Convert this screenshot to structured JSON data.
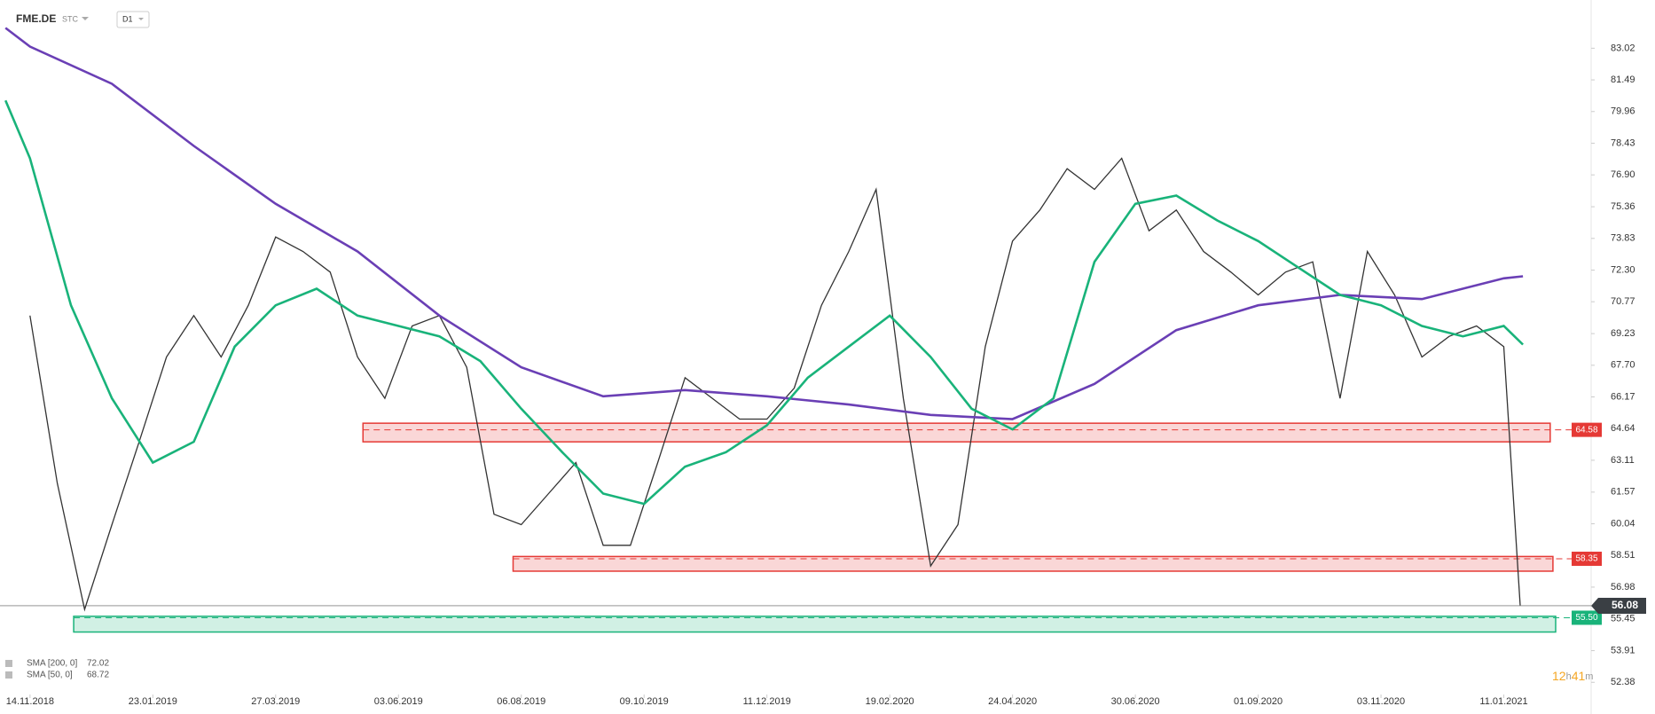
{
  "header": {
    "symbol": "FME.DE",
    "mode": "STC",
    "interval": "D1"
  },
  "chart_data": {
    "type": "line",
    "x": [
      0,
      10,
      20,
      30,
      40,
      50,
      60,
      70,
      80,
      90,
      100,
      110,
      120,
      130,
      140,
      150,
      160,
      170,
      180,
      190,
      200,
      210,
      220,
      230,
      240,
      250,
      260,
      270,
      280,
      290,
      300,
      310,
      320,
      330,
      340,
      350,
      360,
      370,
      380,
      390,
      400,
      410,
      420,
      430,
      440,
      450,
      460,
      470,
      480,
      490,
      500,
      510,
      520,
      530,
      540,
      546
    ],
    "xlim": [
      -11,
      572
    ],
    "xticks": [
      {
        "value": 0,
        "label": "14.11.2018"
      },
      {
        "value": 45,
        "label": "23.01.2019"
      },
      {
        "value": 90,
        "label": "27.03.2019"
      },
      {
        "value": 135,
        "label": "03.06.2019"
      },
      {
        "value": 180,
        "label": "06.08.2019"
      },
      {
        "value": 225,
        "label": "09.10.2019"
      },
      {
        "value": 270,
        "label": "11.12.2019"
      },
      {
        "value": 315,
        "label": "19.02.2020"
      },
      {
        "value": 360,
        "label": "24.04.2020"
      },
      {
        "value": 405,
        "label": "30.06.2020"
      },
      {
        "value": 450,
        "label": "01.09.2020"
      },
      {
        "value": 495,
        "label": "03.11.2020"
      },
      {
        "value": 540,
        "label": "11.01.2021"
      }
    ],
    "ylim": [
      51.62,
      85.35
    ],
    "yticks": [
      83.02,
      81.49,
      79.96,
      78.43,
      {
        "value": 76.9,
        "label": "76.90"
      },
      75.36,
      73.83,
      {
        "value": 72.3,
        "label": "72.30"
      },
      70.77,
      69.23,
      {
        "value": 67.7,
        "label": "67.70"
      },
      66.17,
      64.64,
      63.11,
      61.57,
      60.04,
      58.51,
      56.98,
      55.45,
      53.91,
      52.38
    ],
    "series": [
      {
        "name": "FME.DE",
        "color": "#333333",
        "values": [
          70.1,
          62.0,
          55.9,
          60.0,
          64.0,
          68.1,
          70.1,
          68.1,
          70.6,
          73.9,
          73.2,
          72.2,
          68.1,
          66.1,
          69.6,
          70.1,
          67.6,
          60.5,
          60.0,
          61.5,
          63.0,
          59.0,
          59.0,
          63.0,
          67.1,
          66.1,
          65.1,
          65.1,
          66.6,
          70.6,
          73.2,
          76.2,
          66.1,
          58.0,
          60.0,
          68.6,
          73.7,
          75.2,
          77.2,
          76.2,
          77.7,
          74.2,
          75.2,
          73.2,
          72.2,
          71.1,
          72.2,
          72.7,
          66.1,
          73.2,
          71.1,
          68.1,
          69.1,
          69.6,
          68.6,
          56.1
        ]
      },
      {
        "name": "SMA [200, 0]",
        "color": "#6a3fb5",
        "last": 72.02,
        "x": [
          -9,
          0,
          30,
          60,
          90,
          120,
          150,
          180,
          210,
          240,
          270,
          300,
          330,
          360,
          390,
          420,
          450,
          480,
          510,
          540,
          547
        ],
        "values": [
          84.0,
          83.1,
          81.3,
          78.3,
          75.5,
          73.2,
          70.1,
          67.6,
          66.2,
          66.5,
          66.2,
          65.8,
          65.3,
          65.1,
          66.8,
          69.4,
          70.6,
          71.1,
          70.9,
          71.9,
          72.0
        ]
      },
      {
        "name": "SMA [50, 0]",
        "color": "#19b37a",
        "last": 68.72,
        "x": [
          -9,
          0,
          15,
          30,
          45,
          60,
          75,
          90,
          105,
          120,
          135,
          150,
          165,
          180,
          195,
          210,
          225,
          240,
          255,
          270,
          285,
          300,
          315,
          330,
          345,
          360,
          375,
          390,
          405,
          420,
          435,
          450,
          465,
          480,
          495,
          510,
          525,
          540,
          547
        ],
        "values": [
          80.5,
          77.7,
          70.6,
          66.1,
          63.0,
          64.0,
          68.6,
          70.6,
          71.4,
          70.1,
          69.6,
          69.1,
          67.9,
          65.6,
          63.5,
          61.5,
          61.0,
          62.8,
          63.5,
          64.8,
          67.1,
          68.6,
          70.1,
          68.1,
          65.6,
          64.6,
          66.1,
          72.7,
          75.5,
          75.9,
          74.7,
          73.7,
          72.4,
          71.1,
          70.6,
          69.6,
          69.1,
          69.6,
          68.7
        ]
      }
    ],
    "zones": [
      {
        "level": 64.58,
        "low": 64.0,
        "high": 64.9,
        "start": 122,
        "end": 557,
        "color": "#e53935"
      },
      {
        "level": 58.35,
        "low": 57.75,
        "high": 58.46,
        "start": 177,
        "end": 558,
        "color": "#e53935"
      },
      {
        "level": 55.5,
        "label": "55.50",
        "low": 54.81,
        "high": 55.57,
        "start": 16,
        "end": 559,
        "color": "#19b37a"
      }
    ],
    "last_price": 56.08,
    "countdown": {
      "hours": 12,
      "h": "h",
      "minutes": 41,
      "m": "m"
    }
  }
}
